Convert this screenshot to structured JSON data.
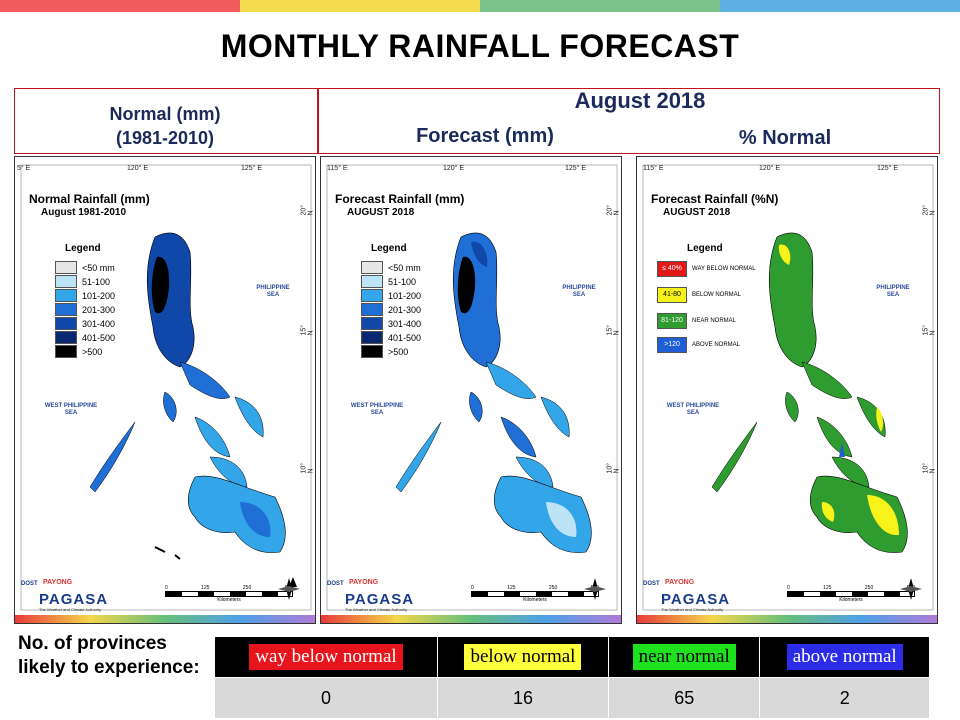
{
  "colors": {
    "bar1": "#ef5b5b",
    "bar2": "#f4dc4e",
    "bar3": "#7cc38a",
    "bar4": "#5fb0e4",
    "frame_red": "#c0141c",
    "title_navy": "#1a2a5a"
  },
  "title": "MONTHLY RAINFALL FORECAST",
  "headers": {
    "normal_line1": "Normal (mm)",
    "normal_line2": "(1981-2010)",
    "month": "August 2018",
    "forecast": "Forecast (mm)",
    "percent": "% Normal"
  },
  "maps": [
    {
      "title": "Normal Rainfall (mm)",
      "subtitle": "August 1981-2010",
      "legend_title": "Legend",
      "legend": [
        {
          "label": "<50 mm",
          "color": "#e6e6e6"
        },
        {
          "label": "51-100",
          "color": "#bde3f7"
        },
        {
          "label": "101-200",
          "color": "#33a6ea"
        },
        {
          "label": "201-300",
          "color": "#1f6fd6"
        },
        {
          "label": "301-400",
          "color": "#0f48a8"
        },
        {
          "label": "401-500",
          "color": "#0a2870"
        },
        {
          "label": ">500",
          "color": "#000000"
        }
      ],
      "coords": {
        "top": [
          "5° E",
          "120° E",
          "125° E"
        ],
        "right": [
          "20° N",
          "15° N",
          "10° N"
        ]
      }
    },
    {
      "title": "Forecast Rainfall (mm)",
      "subtitle": "AUGUST 2018",
      "legend_title": "Legend",
      "legend": [
        {
          "label": "<50 mm",
          "color": "#e6e6e6"
        },
        {
          "label": "51-100",
          "color": "#bde3f7"
        },
        {
          "label": "101-200",
          "color": "#33a6ea"
        },
        {
          "label": "201-300",
          "color": "#1f6fd6"
        },
        {
          "label": "301-400",
          "color": "#0f48a8"
        },
        {
          "label": "401-500",
          "color": "#0a2870"
        },
        {
          "label": ">500",
          "color": "#000000"
        }
      ],
      "coords": {
        "top": [
          "115° E",
          "120° E",
          "125° E"
        ],
        "right": [
          "20° N",
          "15° N",
          "10° N"
        ]
      }
    },
    {
      "title": "Forecast Rainfall (%N)",
      "subtitle": "AUGUST 2018",
      "legend_title": "Legend",
      "legend": [
        {
          "label": "≤ 40%",
          "desc": "WAY BELOW NORMAL",
          "color": "#e11919"
        },
        {
          "label": "41-80",
          "desc": "BELOW NORMAL",
          "color": "#f7f21a"
        },
        {
          "label": "81-120",
          "desc": "NEAR NORMAL",
          "color": "#2f9c2f"
        },
        {
          "label": ">120",
          "desc": "ABOVE NORMAL",
          "color": "#1e5fd6"
        }
      ],
      "coords": {
        "top": [
          "115° E",
          "120° E",
          "125° E"
        ],
        "right": [
          "20° N",
          "15° N",
          "10° N"
        ]
      }
    }
  ],
  "sea_labels": {
    "east": "PHILIPPINE SEA",
    "west": "WEST PHILIPPINE SEA"
  },
  "logo": {
    "dost": "DOST",
    "payong": "PAYONG",
    "pagasa": "PAGASA",
    "tagline": "The Weather and Climate Authority"
  },
  "scale": {
    "ticks": [
      "0",
      "125",
      "250",
      "500"
    ],
    "unit": "Kilometers"
  },
  "bottom": {
    "label": "No. of provinces likely to experience:",
    "categories": [
      {
        "label": "way below normal",
        "bg": "#e8141c",
        "fg": "#ffffff",
        "count": "0"
      },
      {
        "label": "below normal",
        "bg": "#ffff3c",
        "fg": "#000000",
        "count": "16"
      },
      {
        "label": "near normal",
        "bg": "#1fe21f",
        "fg": "#000000",
        "count": "65"
      },
      {
        "label": "above normal",
        "bg": "#2c2ce8",
        "fg": "#ffffff",
        "count": "2"
      }
    ]
  }
}
